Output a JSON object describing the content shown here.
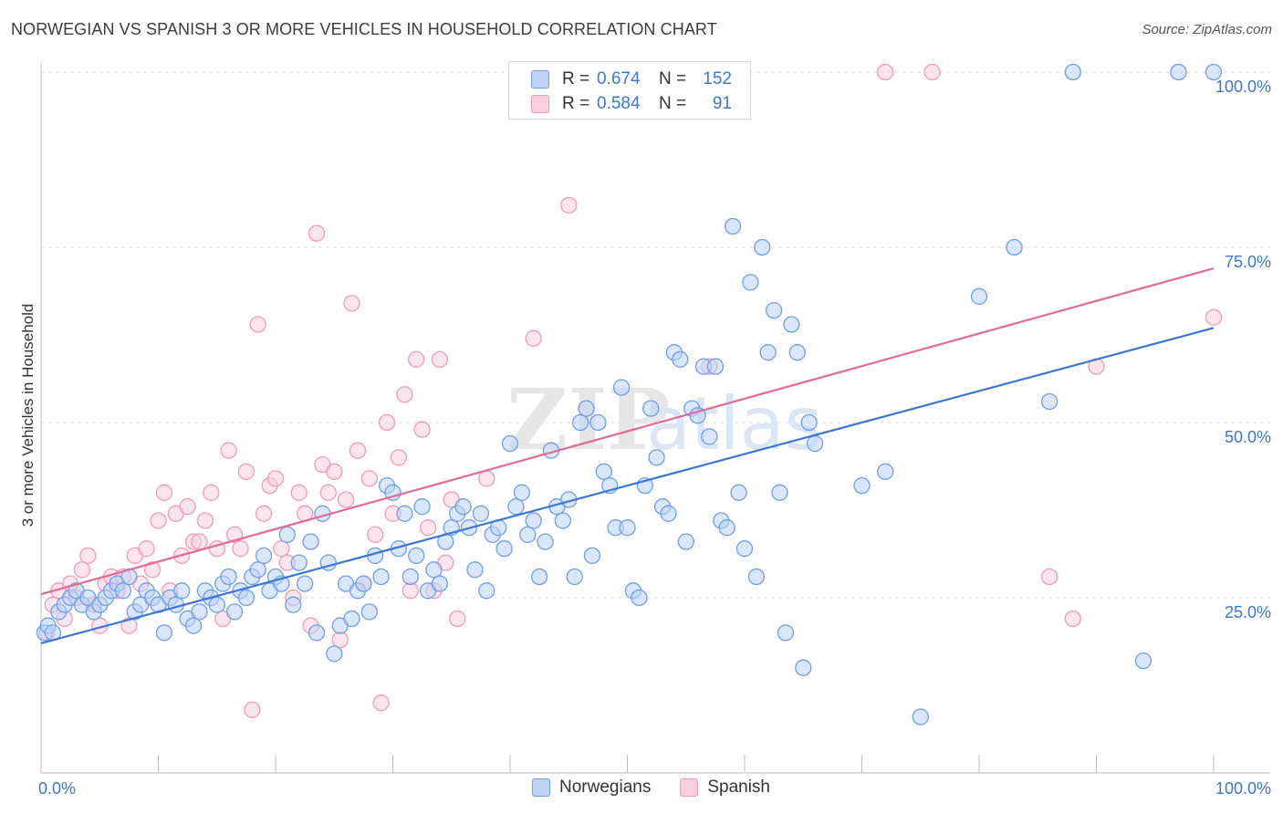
{
  "header": {
    "title": "NORWEGIAN VS SPANISH 3 OR MORE VEHICLES IN HOUSEHOLD CORRELATION CHART",
    "source": "Source: ZipAtlas.com"
  },
  "legend": {
    "rows": [
      {
        "r_label": "R =",
        "r_value": "0.674",
        "n_label": "N =",
        "n_value": "152"
      },
      {
        "r_label": "R =",
        "r_value": "0.584",
        "n_label": "N =",
        "n_value": "91"
      }
    ]
  },
  "chart_data": {
    "type": "scatter",
    "ylabel": "3 or more Vehicles in Household",
    "xlim": [
      0,
      100
    ],
    "ylim": [
      0,
      100
    ],
    "x_tick_labels": [
      "0.0%",
      "100.0%"
    ],
    "y_tick_labels": [
      "25.0%",
      "50.0%",
      "75.0%",
      "100.0%"
    ],
    "y_ticks": [
      25,
      50,
      75,
      100
    ],
    "grid": "horizontal dashed",
    "legend_position": "bottom-center",
    "colors": {
      "norwegians": "#6f9ee8",
      "spanish": "#f09ab8",
      "norwegians_line": "#3a78d4",
      "spanish_line": "#e06b95"
    },
    "series": [
      {
        "name": "Norwegians",
        "trend": [
          [
            0,
            18.5
          ],
          [
            100,
            63.5
          ]
        ],
        "points": [
          [
            0.3,
            20
          ],
          [
            0.6,
            21
          ],
          [
            1,
            20
          ],
          [
            1.5,
            23
          ],
          [
            2,
            24
          ],
          [
            2.5,
            25
          ],
          [
            3,
            26
          ],
          [
            3.5,
            24
          ],
          [
            4,
            25
          ],
          [
            4.5,
            23
          ],
          [
            5,
            24
          ],
          [
            5.5,
            25
          ],
          [
            6,
            26
          ],
          [
            6.5,
            27
          ],
          [
            7,
            26
          ],
          [
            7.5,
            28
          ],
          [
            8,
            23
          ],
          [
            8.5,
            24
          ],
          [
            9,
            26
          ],
          [
            9.5,
            25
          ],
          [
            10,
            24
          ],
          [
            10.5,
            20
          ],
          [
            11,
            25
          ],
          [
            11.5,
            24
          ],
          [
            12,
            26
          ],
          [
            12.5,
            22
          ],
          [
            13,
            21
          ],
          [
            13.5,
            23
          ],
          [
            14,
            26
          ],
          [
            14.5,
            25
          ],
          [
            15,
            24
          ],
          [
            15.5,
            27
          ],
          [
            16,
            28
          ],
          [
            16.5,
            23
          ],
          [
            17,
            26
          ],
          [
            17.5,
            25
          ],
          [
            18,
            28
          ],
          [
            18.5,
            29
          ],
          [
            19,
            31
          ],
          [
            19.5,
            26
          ],
          [
            20,
            28
          ],
          [
            20.5,
            27
          ],
          [
            21,
            34
          ],
          [
            21.5,
            24
          ],
          [
            22,
            30
          ],
          [
            22.5,
            27
          ],
          [
            23,
            33
          ],
          [
            23.5,
            20
          ],
          [
            24,
            37
          ],
          [
            24.5,
            30
          ],
          [
            25,
            17
          ],
          [
            25.5,
            21
          ],
          [
            26,
            27
          ],
          [
            26.5,
            22
          ],
          [
            27,
            26
          ],
          [
            27.5,
            27
          ],
          [
            28,
            23
          ],
          [
            28.5,
            31
          ],
          [
            29,
            28
          ],
          [
            29.5,
            41
          ],
          [
            30,
            40
          ],
          [
            30.5,
            32
          ],
          [
            31,
            37
          ],
          [
            31.5,
            28
          ],
          [
            32,
            31
          ],
          [
            32.5,
            38
          ],
          [
            33,
            26
          ],
          [
            33.5,
            29
          ],
          [
            34,
            27
          ],
          [
            34.5,
            33
          ],
          [
            35,
            35
          ],
          [
            35.5,
            37
          ],
          [
            36,
            38
          ],
          [
            36.5,
            35
          ],
          [
            37,
            29
          ],
          [
            37.5,
            37
          ],
          [
            38,
            26
          ],
          [
            38.5,
            34
          ],
          [
            39,
            35
          ],
          [
            39.5,
            32
          ],
          [
            40,
            47
          ],
          [
            40.5,
            38
          ],
          [
            41,
            40
          ],
          [
            41.5,
            34
          ],
          [
            42,
            36
          ],
          [
            42.5,
            28
          ],
          [
            43,
            33
          ],
          [
            43.5,
            46
          ],
          [
            44,
            38
          ],
          [
            44.5,
            36
          ],
          [
            45,
            39
          ],
          [
            45.5,
            28
          ],
          [
            46,
            50
          ],
          [
            46.5,
            52
          ],
          [
            47,
            31
          ],
          [
            47.5,
            50
          ],
          [
            48,
            43
          ],
          [
            48.5,
            41
          ],
          [
            49,
            35
          ],
          [
            49.5,
            55
          ],
          [
            50,
            35
          ],
          [
            50.5,
            26
          ],
          [
            51,
            25
          ],
          [
            51.5,
            41
          ],
          [
            52,
            52
          ],
          [
            52.5,
            45
          ],
          [
            53,
            38
          ],
          [
            53.5,
            37
          ],
          [
            54,
            60
          ],
          [
            54.5,
            59
          ],
          [
            55,
            33
          ],
          [
            55.5,
            52
          ],
          [
            56,
            51
          ],
          [
            56.5,
            58
          ],
          [
            57,
            48
          ],
          [
            57.5,
            58
          ],
          [
            58,
            36
          ],
          [
            58.5,
            35
          ],
          [
            59,
            78
          ],
          [
            59.5,
            40
          ],
          [
            60,
            32
          ],
          [
            60.5,
            70
          ],
          [
            61,
            28
          ],
          [
            61.5,
            75
          ],
          [
            62,
            60
          ],
          [
            62.5,
            66
          ],
          [
            63,
            40
          ],
          [
            63.5,
            20
          ],
          [
            64,
            64
          ],
          [
            64.5,
            60
          ],
          [
            65,
            15
          ],
          [
            65.5,
            50
          ],
          [
            66,
            47
          ],
          [
            70,
            41
          ],
          [
            72,
            43
          ],
          [
            75,
            8
          ],
          [
            80,
            68
          ],
          [
            83,
            75
          ],
          [
            86,
            53
          ],
          [
            88,
            100
          ],
          [
            94,
            16
          ],
          [
            97,
            100
          ],
          [
            100,
            100
          ]
        ]
      },
      {
        "name": "Spanish",
        "trend": [
          [
            0,
            25.5
          ],
          [
            100,
            72
          ]
        ],
        "points": [
          [
            0.5,
            20
          ],
          [
            1,
            24
          ],
          [
            1.5,
            26
          ],
          [
            2,
            22
          ],
          [
            2.5,
            27
          ],
          [
            3,
            25
          ],
          [
            3.5,
            29
          ],
          [
            4,
            31
          ],
          [
            4.5,
            24
          ],
          [
            5,
            21
          ],
          [
            5.5,
            27
          ],
          [
            6,
            28
          ],
          [
            6.5,
            26
          ],
          [
            7,
            28
          ],
          [
            7.5,
            21
          ],
          [
            8,
            31
          ],
          [
            8.5,
            27
          ],
          [
            9,
            32
          ],
          [
            9.5,
            29
          ],
          [
            10,
            36
          ],
          [
            10.5,
            40
          ],
          [
            11,
            26
          ],
          [
            11.5,
            37
          ],
          [
            12,
            31
          ],
          [
            12.5,
            38
          ],
          [
            13,
            33
          ],
          [
            13.5,
            33
          ],
          [
            14,
            36
          ],
          [
            14.5,
            40
          ],
          [
            15,
            32
          ],
          [
            15.5,
            22
          ],
          [
            16,
            46
          ],
          [
            16.5,
            34
          ],
          [
            17,
            32
          ],
          [
            17.5,
            43
          ],
          [
            18,
            9
          ],
          [
            18.5,
            64
          ],
          [
            19,
            37
          ],
          [
            19.5,
            41
          ],
          [
            20,
            42
          ],
          [
            20.5,
            32
          ],
          [
            21,
            30
          ],
          [
            21.5,
            25
          ],
          [
            22,
            40
          ],
          [
            22.5,
            37
          ],
          [
            23,
            21
          ],
          [
            23.5,
            77
          ],
          [
            24,
            44
          ],
          [
            24.5,
            40
          ],
          [
            25,
            43
          ],
          [
            25.5,
            19
          ],
          [
            26,
            39
          ],
          [
            26.5,
            67
          ],
          [
            27,
            46
          ],
          [
            27.5,
            27
          ],
          [
            28,
            42
          ],
          [
            28.5,
            34
          ],
          [
            29,
            10
          ],
          [
            29.5,
            50
          ],
          [
            30,
            37
          ],
          [
            30.5,
            45
          ],
          [
            31,
            54
          ],
          [
            31.5,
            26
          ],
          [
            32,
            59
          ],
          [
            32.5,
            49
          ],
          [
            33,
            35
          ],
          [
            33.5,
            26
          ],
          [
            34,
            59
          ],
          [
            34.5,
            30
          ],
          [
            35,
            39
          ],
          [
            35.5,
            22
          ],
          [
            38,
            42
          ],
          [
            42,
            62
          ],
          [
            45,
            81
          ],
          [
            52,
            100
          ],
          [
            57,
            58
          ],
          [
            72,
            100
          ],
          [
            76,
            100
          ],
          [
            86,
            28
          ],
          [
            88,
            22
          ],
          [
            90,
            58
          ],
          [
            100,
            65
          ]
        ]
      }
    ]
  }
}
